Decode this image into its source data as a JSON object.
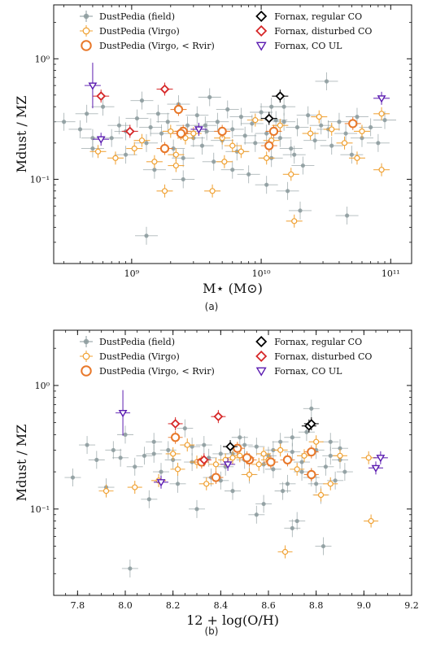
{
  "colors": {
    "field": "#8b9a9c",
    "virgo": "#f0a030",
    "virgo_rvir": "#e8782a",
    "fornax_regular": "#000000",
    "fornax_disturbed": "#d62728",
    "fornax_ul": "#5a1ab0"
  },
  "chart_data": [
    {
      "panel": "(a)",
      "type": "scatter",
      "xlabel": "M⋆ (M⊙)",
      "ylabel": "Mdust / MZ",
      "xscale": "log",
      "yscale": "log",
      "xlim": [
        250000000.0,
        145000000000.0
      ],
      "ylim": [
        0.02,
        2.8
      ],
      "xticks": [
        1000000000.0,
        10000000000.0,
        100000000000.0
      ],
      "xtick_labels": [
        "10⁹",
        "10¹⁰",
        "10¹¹"
      ],
      "yticks": [
        0.1,
        1
      ],
      "ytick_labels": [
        "10⁻¹",
        "10⁰"
      ],
      "legend": [
        "DustPedia (field)",
        "DustPedia (Virgo)",
        "DustPedia (Virgo, < Rvir)",
        "Fornax, regular CO",
        "Fornax, disturbed CO",
        "Fornax, CO UL"
      ],
      "legend_position": "top",
      "series": [
        {
          "name": "DustPedia (field)",
          "points": [
            [
              300000000.0,
              0.3
            ],
            [
              400000000.0,
              0.26
            ],
            [
              450000000.0,
              0.35
            ],
            [
              500000000.0,
              0.18
            ],
            [
              600000000.0,
              0.4
            ],
            [
              700000000.0,
              0.22
            ],
            [
              800000000.0,
              0.28
            ],
            [
              900000000.0,
              0.16
            ],
            [
              1100000000.0,
              0.32
            ],
            [
              1200000000.0,
              0.45
            ],
            [
              1300000000.0,
              0.2
            ],
            [
              1400000000.0,
              0.27
            ],
            [
              1500000000.0,
              0.12
            ],
            [
              1600000000.0,
              0.35
            ],
            [
              1700000000.0,
              0.24
            ],
            [
              1900000000.0,
              0.3
            ],
            [
              2100000000.0,
              0.18
            ],
            [
              2300000000.0,
              0.42
            ],
            [
              2500000000.0,
              0.15
            ],
            [
              2700000000.0,
              0.28
            ],
            [
              3000000000.0,
              0.22
            ],
            [
              3200000000.0,
              0.34
            ],
            [
              3500000000.0,
              0.19
            ],
            [
              3800000000.0,
              0.25
            ],
            [
              4000000000.0,
              0.48
            ],
            [
              4300000000.0,
              0.14
            ],
            [
              4600000000.0,
              0.3
            ],
            [
              5000000000.0,
              0.21
            ],
            [
              5500000000.0,
              0.38
            ],
            [
              6000000000.0,
              0.26
            ],
            [
              6500000000.0,
              0.17
            ],
            [
              7000000000.0,
              0.33
            ],
            [
              7500000000.0,
              0.23
            ],
            [
              8000000000.0,
              0.11
            ],
            [
              8500000000.0,
              0.29
            ],
            [
              9000000000.0,
              0.2
            ],
            [
              10000000000.0,
              0.36
            ],
            [
              11000000000.0,
              0.24
            ],
            [
              12000000000.0,
              0.15
            ],
            [
              13000000000.0,
              0.31
            ],
            [
              14000000000.0,
              0.22
            ],
            [
              15000000000.0,
              0.4
            ],
            [
              17000000000.0,
              0.18
            ],
            [
              19000000000.0,
              0.27
            ],
            [
              21000000000.0,
              0.13
            ],
            [
              23000000000.0,
              0.34
            ],
            [
              26000000000.0,
              0.21
            ],
            [
              29000000000.0,
              0.28
            ],
            [
              32000000000.0,
              0.65
            ],
            [
              35000000000.0,
              0.19
            ],
            [
              40000000000.0,
              0.3
            ],
            [
              45000000000.0,
              0.24
            ],
            [
              50000000000.0,
              0.16
            ],
            [
              55000000000.0,
              0.33
            ],
            [
              60000000000.0,
              0.22
            ],
            [
              70000000000.0,
              0.27
            ],
            [
              80000000000.0,
              0.2
            ],
            [
              90000000000.0,
              0.31
            ],
            [
              11000000000.0,
              0.09
            ],
            [
              15000000000.0,
              0.3
            ],
            [
              1300000000.0,
              0.034
            ],
            [
              20000000000.0,
              0.055
            ],
            [
              46000000000.0,
              0.05
            ],
            [
              6000000000.0,
              0.12
            ],
            [
              2500000000.0,
              0.1
            ],
            [
              18000000000.0,
              0.16
            ],
            [
              33000000000.0,
              0.26
            ],
            [
              16000000000.0,
              0.08
            ],
            [
              900000000.0,
              0.25
            ],
            [
              500000000.0,
              0.22
            ],
            [
              3700000000.0,
              0.28
            ],
            [
              12000000000.0,
              0.4
            ]
          ]
        },
        {
          "name": "DustPedia (Virgo)",
          "points": [
            [
              550000000.0,
              0.17
            ],
            [
              750000000.0,
              0.15
            ],
            [
              1200000000.0,
              0.21
            ],
            [
              1500000000.0,
              0.14
            ],
            [
              1800000000.0,
              0.08
            ],
            [
              2200000000.0,
              0.16
            ],
            [
              2600000000.0,
              0.22
            ],
            [
              3000000000.0,
              0.24
            ],
            [
              4200000000.0,
              0.08
            ],
            [
              5200000000.0,
              0.14
            ],
            [
              6000000000.0,
              0.19
            ],
            [
              7000000000.0,
              0.17
            ],
            [
              11000000000.0,
              0.15
            ],
            [
              12000000000.0,
              0.21
            ],
            [
              14000000000.0,
              0.28
            ],
            [
              18000000000.0,
              0.045
            ],
            [
              24000000000.0,
              0.24
            ],
            [
              28000000000.0,
              0.33
            ],
            [
              35000000000.0,
              0.26
            ],
            [
              44000000000.0,
              0.2
            ],
            [
              60000000000.0,
              0.25
            ],
            [
              85000000000.0,
              0.35
            ],
            [
              85000000000.0,
              0.12
            ],
            [
              55000000000.0,
              0.15
            ],
            [
              2000000000.0,
              0.25
            ],
            [
              9000000000.0,
              0.31
            ],
            [
              17000000000.0,
              0.11
            ],
            [
              2200000000.0,
              0.13
            ],
            [
              5000000000.0,
              0.22
            ],
            [
              1050000000.0,
              0.18
            ]
          ]
        },
        {
          "name": "DustPedia (Virgo, < Rvir)",
          "points": [
            [
              1800000000.0,
              0.18
            ],
            [
              2300000000.0,
              0.38
            ],
            [
              2500000000.0,
              0.25
            ],
            [
              5000000000.0,
              0.25
            ],
            [
              11500000000.0,
              0.19
            ],
            [
              12500000000.0,
              0.25
            ],
            [
              51000000000.0,
              0.29
            ],
            [
              2400000000.0,
              0.24
            ]
          ]
        },
        {
          "name": "Fornax, regular CO",
          "points": [
            [
              14000000000.0,
              0.49
            ],
            [
              11500000000.0,
              0.32
            ]
          ]
        },
        {
          "name": "Fornax, disturbed CO",
          "points": [
            [
              580000000.0,
              0.49
            ],
            [
              970000000.0,
              0.25
            ],
            [
              1800000000.0,
              0.56
            ]
          ]
        },
        {
          "name": "Fornax, CO UL",
          "points": [
            [
              500000000.0,
              0.6
            ],
            [
              580000000.0,
              0.215
            ],
            [
              3300000000.0,
              0.26
            ],
            [
              85000000000.0,
              0.47
            ]
          ]
        }
      ]
    },
    {
      "panel": "(b)",
      "type": "scatter",
      "xlabel": "12 + log(O/H)",
      "ylabel": "Mdust / MZ",
      "xscale": "linear",
      "yscale": "log",
      "xlim": [
        7.7,
        9.2
      ],
      "ylim": [
        0.02,
        2.8
      ],
      "xticks": [
        7.8,
        8.0,
        8.2,
        8.4,
        8.6,
        8.8,
        9.0,
        9.2
      ],
      "xtick_labels": [
        "7.8",
        "8.0",
        "8.2",
        "8.4",
        "8.6",
        "8.8",
        "9.0",
        "9.2"
      ],
      "yticks": [
        0.1,
        1
      ],
      "ytick_labels": [
        "10⁻¹",
        "10⁰"
      ],
      "legend": [
        "DustPedia (field)",
        "DustPedia (Virgo)",
        "DustPedia (Virgo, < Rvir)",
        "Fornax, regular CO",
        "Fornax, disturbed CO",
        "Fornax, CO UL"
      ],
      "legend_position": "top",
      "series": [
        {
          "name": "DustPedia (field)",
          "points": [
            [
              7.78,
              0.18
            ],
            [
              7.84,
              0.33
            ],
            [
              7.88,
              0.25
            ],
            [
              7.92,
              0.15
            ],
            [
              7.95,
              0.3
            ],
            [
              8.0,
              0.4
            ],
            [
              8.02,
              0.033
            ],
            [
              8.04,
              0.22
            ],
            [
              8.08,
              0.27
            ],
            [
              8.1,
              0.12
            ],
            [
              8.12,
              0.35
            ],
            [
              8.15,
              0.2
            ],
            [
              8.18,
              0.3
            ],
            [
              8.22,
              0.16
            ],
            [
              8.25,
              0.45
            ],
            [
              8.28,
              0.24
            ],
            [
              8.3,
              0.1
            ],
            [
              8.33,
              0.33
            ],
            [
              8.36,
              0.18
            ],
            [
              8.4,
              0.28
            ],
            [
              8.42,
              0.22
            ],
            [
              8.45,
              0.14
            ],
            [
              8.48,
              0.38
            ],
            [
              8.5,
              0.25
            ],
            [
              8.52,
              0.19
            ],
            [
              8.55,
              0.32
            ],
            [
              8.58,
              0.11
            ],
            [
              8.6,
              0.27
            ],
            [
              8.62,
              0.21
            ],
            [
              8.65,
              0.35
            ],
            [
              8.68,
              0.16
            ],
            [
              8.7,
              0.29
            ],
            [
              8.72,
              0.08
            ],
            [
              8.74,
              0.24
            ],
            [
              8.76,
              0.42
            ],
            [
              8.78,
              0.18
            ],
            [
              8.8,
              0.3
            ],
            [
              8.82,
              0.13
            ],
            [
              8.84,
              0.22
            ],
            [
              8.86,
              0.27
            ],
            [
              8.88,
              0.17
            ],
            [
              8.9,
              0.25
            ],
            [
              8.92,
              0.2
            ],
            [
              8.78,
              0.65
            ],
            [
              8.83,
              0.05
            ],
            [
              8.7,
              0.07
            ],
            [
              8.55,
              0.09
            ],
            [
              8.45,
              0.28
            ],
            [
              8.35,
              0.26
            ],
            [
              8.62,
              0.3
            ],
            [
              8.74,
              0.2
            ],
            [
              8.8,
              0.16
            ],
            [
              8.9,
              0.31
            ],
            [
              8.58,
              0.23
            ],
            [
              8.66,
              0.14
            ],
            [
              8.5,
              0.33
            ],
            [
              8.4,
              0.17
            ],
            [
              8.28,
              0.32
            ],
            [
              8.2,
              0.25
            ],
            [
              8.12,
              0.28
            ],
            [
              7.98,
              0.26
            ],
            [
              8.86,
              0.35
            ],
            [
              8.7,
              0.38
            ]
          ]
        },
        {
          "name": "DustPedia (Virgo)",
          "points": [
            [
              7.92,
              0.14
            ],
            [
              8.04,
              0.15
            ],
            [
              8.14,
              0.17
            ],
            [
              8.2,
              0.28
            ],
            [
              8.22,
              0.21
            ],
            [
              8.3,
              0.24
            ],
            [
              8.34,
              0.16
            ],
            [
              8.42,
              0.25
            ],
            [
              8.48,
              0.27
            ],
            [
              8.52,
              0.19
            ],
            [
              8.56,
              0.23
            ],
            [
              8.6,
              0.25
            ],
            [
              8.67,
              0.045
            ],
            [
              8.72,
              0.21
            ],
            [
              8.8,
              0.35
            ],
            [
              8.86,
              0.16
            ],
            [
              8.9,
              0.27
            ],
            [
              9.03,
              0.08
            ],
            [
              9.02,
              0.26
            ],
            [
              8.75,
              0.27
            ],
            [
              8.45,
              0.26
            ],
            [
              8.65,
              0.3
            ],
            [
              8.82,
              0.13
            ],
            [
              8.58,
              0.28
            ],
            [
              8.38,
              0.23
            ],
            [
              8.26,
              0.33
            ]
          ]
        },
        {
          "name": "DustPedia (Virgo, < Rvir)",
          "points": [
            [
              8.21,
              0.38
            ],
            [
              8.32,
              0.24
            ],
            [
              8.38,
              0.18
            ],
            [
              8.47,
              0.31
            ],
            [
              8.52,
              0.25
            ],
            [
              8.61,
              0.24
            ],
            [
              8.68,
              0.25
            ],
            [
              8.78,
              0.29
            ],
            [
              8.78,
              0.19
            ],
            [
              8.51,
              0.26
            ]
          ]
        },
        {
          "name": "Fornax, regular CO",
          "points": [
            [
              8.44,
              0.32
            ],
            [
              8.77,
              0.47
            ],
            [
              8.78,
              0.49
            ]
          ]
        },
        {
          "name": "Fornax, disturbed CO",
          "points": [
            [
              8.21,
              0.49
            ],
            [
              8.33,
              0.25
            ],
            [
              8.39,
              0.56
            ]
          ]
        },
        {
          "name": "Fornax, CO UL",
          "points": [
            [
              7.99,
              0.6
            ],
            [
              8.15,
              0.165
            ],
            [
              8.43,
              0.23
            ],
            [
              9.05,
              0.215
            ],
            [
              9.07,
              0.26
            ]
          ]
        }
      ]
    }
  ]
}
